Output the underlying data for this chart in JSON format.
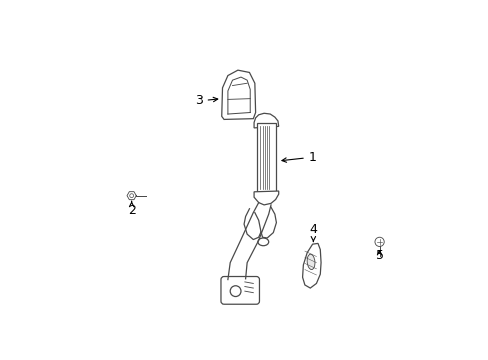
{
  "background_color": "#ffffff",
  "line_color": "#4a4a4a",
  "label_color": "#000000",
  "fig_width": 4.89,
  "fig_height": 3.6,
  "dpi": 100,
  "label_fontsize": 9
}
